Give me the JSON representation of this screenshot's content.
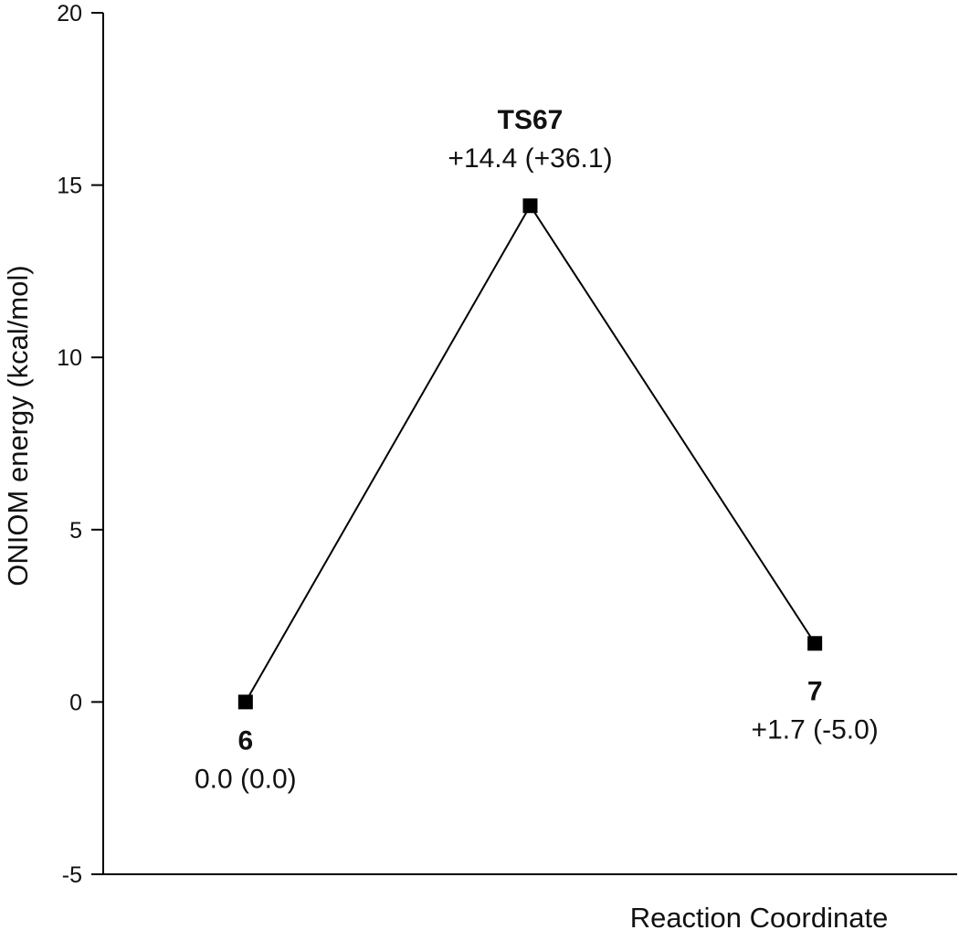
{
  "chart_data": {
    "type": "line",
    "title": "",
    "xlabel": "Reaction Coordinate",
    "ylabel": "ONIOM energy (kcal/mol)",
    "ylim": [
      -5,
      20
    ],
    "y_ticks": [
      -5,
      0,
      5,
      10,
      15,
      20
    ],
    "grid": false,
    "x": [
      1,
      2,
      3
    ],
    "xlim": [
      0.5,
      3.5
    ],
    "series": [
      {
        "values": [
          0.0,
          14.4,
          1.7
        ]
      }
    ],
    "point_labels": [
      {
        "name": "6",
        "value": "0.0 (0.0)"
      },
      {
        "name": "TS67",
        "value": "+14.4 (+36.1)"
      },
      {
        "name": "7",
        "value": "+1.7 (-5.0)"
      }
    ],
    "colors": {
      "line": "#000000",
      "marker": "#000000"
    }
  }
}
